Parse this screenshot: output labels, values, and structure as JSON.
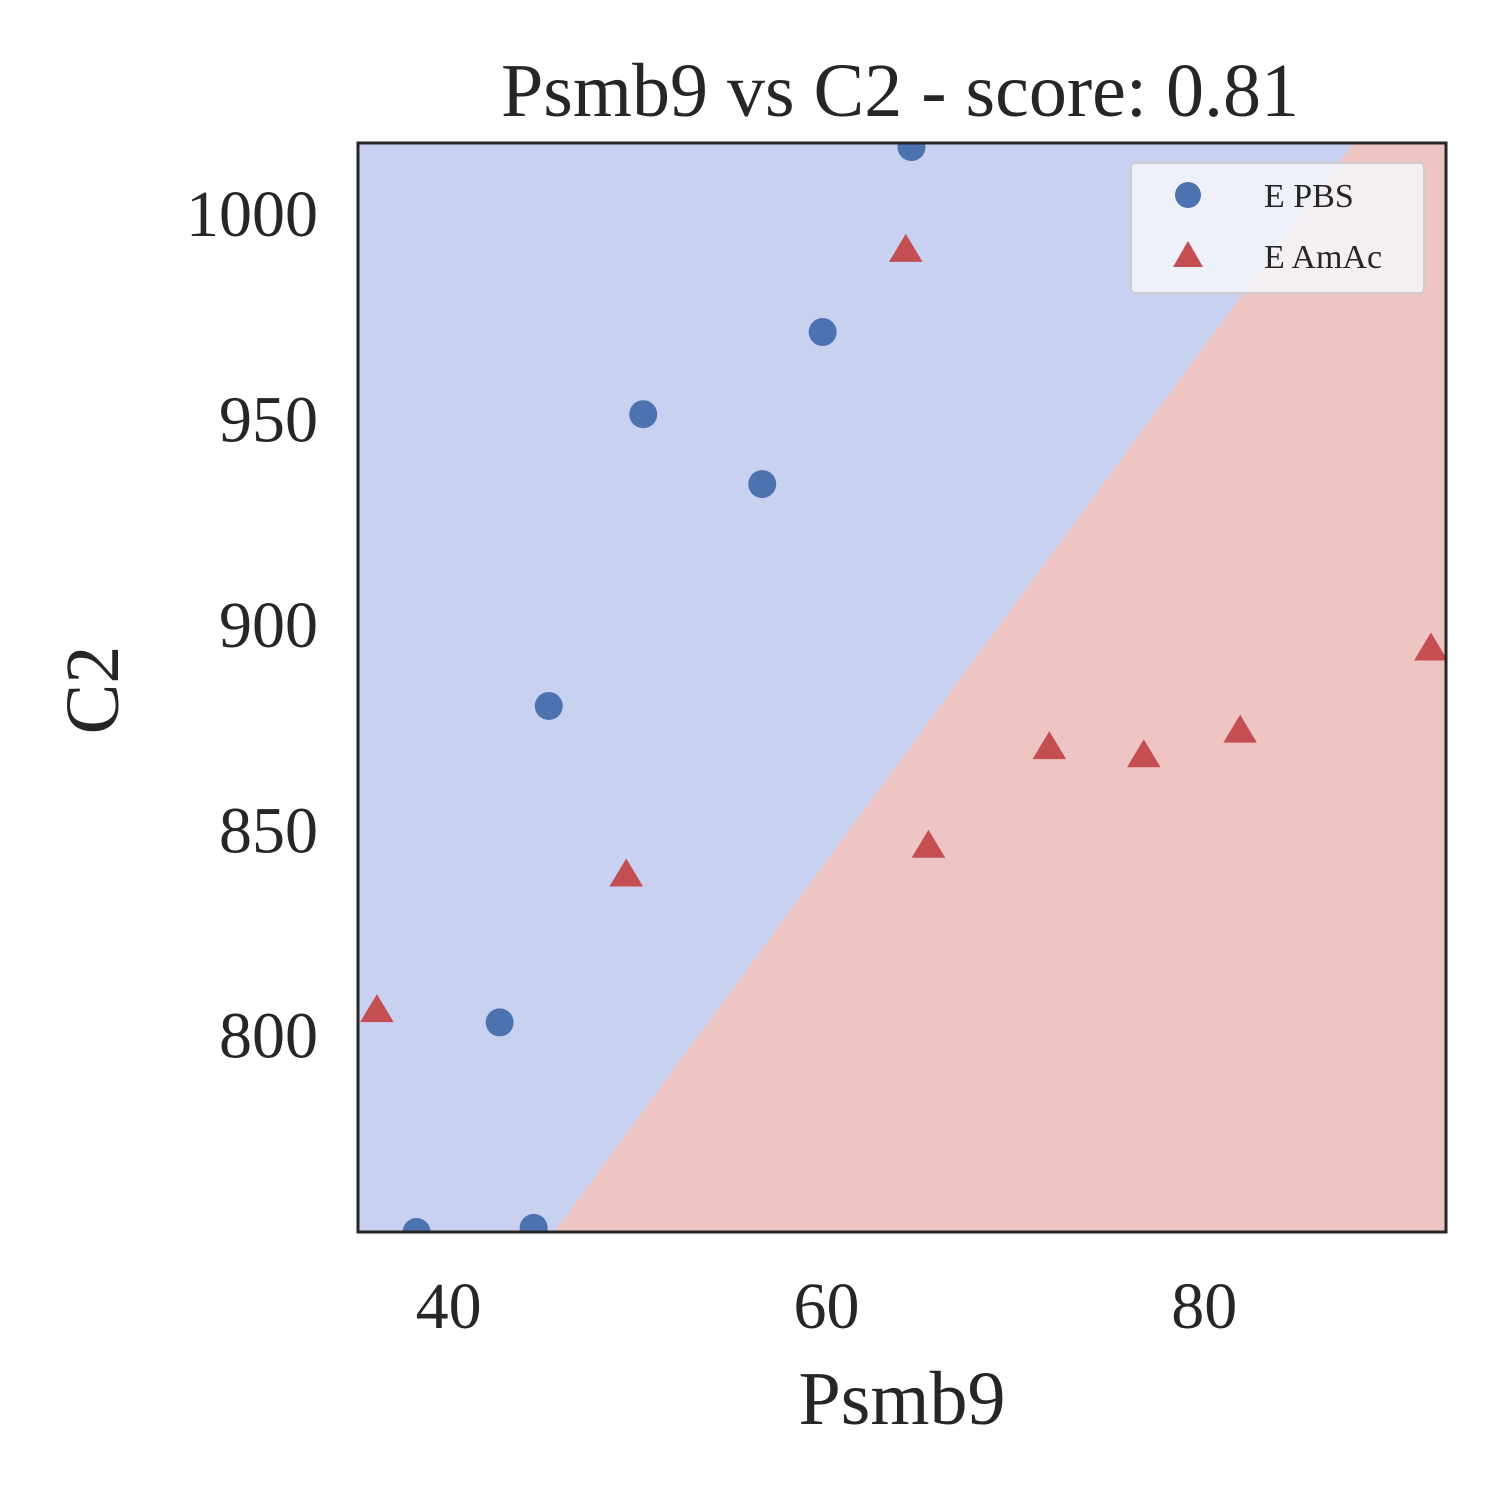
{
  "chart_data": {
    "type": "scatter",
    "title": "Psmb9 vs C2 - score: 0.81",
    "xlabel": "Psmb9",
    "ylabel": "C2",
    "xlim": [
      35.2,
      92.8
    ],
    "ylim": [
      752,
      1017
    ],
    "x_ticks": [
      40,
      60,
      80
    ],
    "y_ticks": [
      800,
      850,
      900,
      950,
      1000
    ],
    "grid": false,
    "legend_position": "top-right",
    "decision_boundary": {
      "points": [
        [
          45.6,
          752
        ],
        [
          87.9,
          1017
        ]
      ],
      "region_above_color": "#c9d1f1",
      "region_below_color": "#efc5c4"
    },
    "series": [
      {
        "name": "E PBS",
        "marker": "circle",
        "color": "#4c72b0",
        "points": [
          [
            64.5,
            1016
          ],
          [
            59.8,
            971
          ],
          [
            50.3,
            951
          ],
          [
            56.6,
            934
          ],
          [
            45.3,
            880
          ],
          [
            42.7,
            803
          ],
          [
            38.3,
            752
          ],
          [
            44.5,
            753
          ]
        ]
      },
      {
        "name": "E AmAc",
        "marker": "triangle",
        "color": "#c44e52",
        "points": [
          [
            64.2,
            991
          ],
          [
            49.4,
            839
          ],
          [
            36.2,
            806
          ],
          [
            65.4,
            846
          ],
          [
            71.8,
            870
          ],
          [
            76.8,
            868
          ],
          [
            81.9,
            874
          ],
          [
            92.0,
            894
          ]
        ]
      }
    ]
  }
}
